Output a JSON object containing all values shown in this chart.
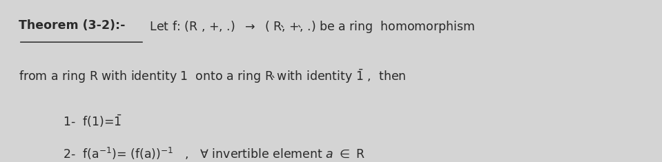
{
  "bg_color": "#d4d4d4",
  "text_color": "#2a2a2a",
  "figsize": [
    9.59,
    2.35
  ],
  "dpi": 100,
  "fontsize": 12.5,
  "theorem_label": "Theorem (3-2):-",
  "line1_rest": " Let f: (R , +, .)  →  ( Rʼ, +ʼ, .) be a ring  homomorphism",
  "line2": "from a ring R with identity 1  onto a ring Rʼ with identity Ĭ ,  then",
  "item1": "1-  f(1)=Ĭ",
  "item2_pre": "2-  f(a",
  "item2_post": ")= (f(a))",
  "forall_text": "  ,   ∀ invertible element ",
  "a_text": "a",
  "er_text": " ∈ R"
}
